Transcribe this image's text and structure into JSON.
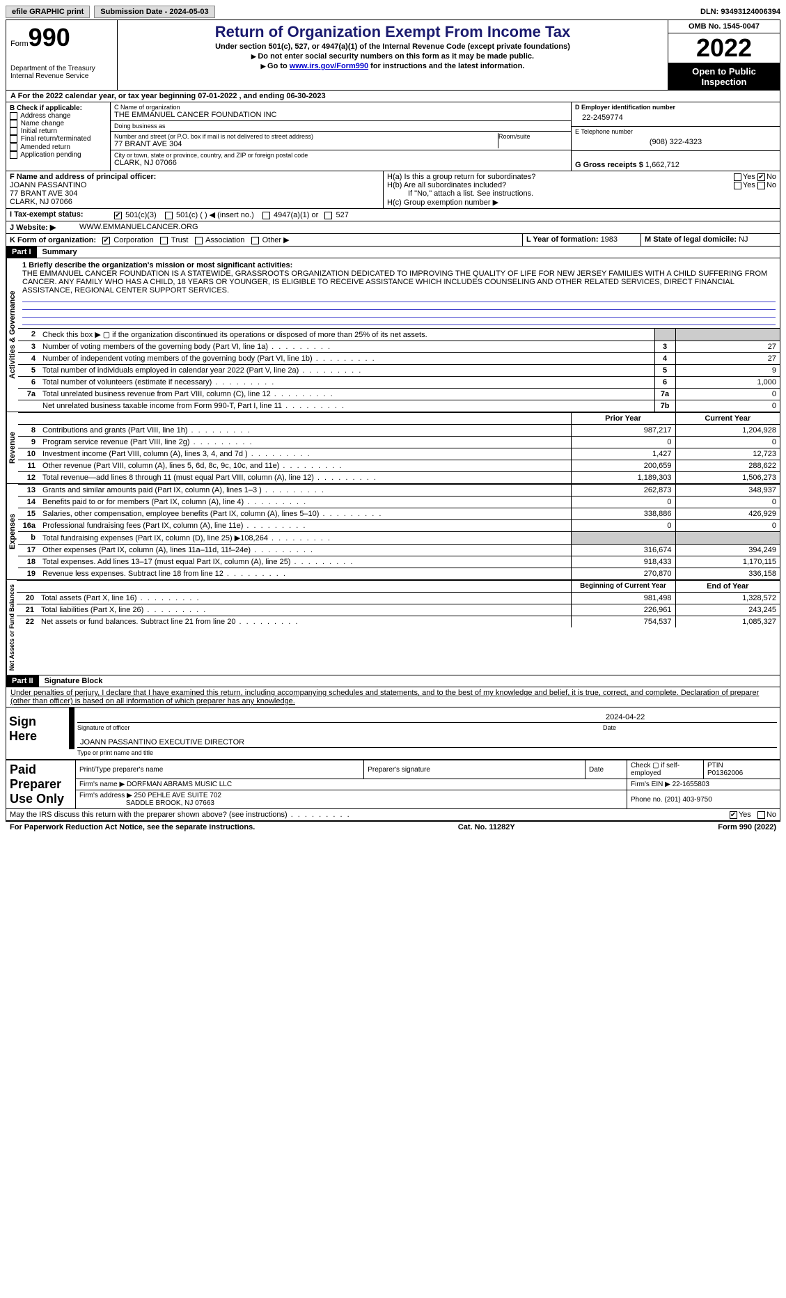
{
  "toolbar": {
    "efile": "efile GRAPHIC print",
    "submission_label": "Submission Date - ",
    "submission_date": "2024-05-03",
    "dln_label": "DLN: ",
    "dln": "93493124006394"
  },
  "header": {
    "form_word": "Form",
    "form_num": "990",
    "dept": "Department of the Treasury\nInternal Revenue Service",
    "title": "Return of Organization Exempt From Income Tax",
    "sub1": "Under section 501(c), 527, or 4947(a)(1) of the Internal Revenue Code (except private foundations)",
    "sub2": "Do not enter social security numbers on this form as it may be made public.",
    "sub3_pre": "Go to ",
    "sub3_link": "www.irs.gov/Form990",
    "sub3_post": " for instructions and the latest information.",
    "omb": "OMB No. 1545-0047",
    "year": "2022",
    "open": "Open to Public Inspection"
  },
  "sectionA": "For the 2022 calendar year, or tax year beginning 07-01-2022   , and ending 06-30-2023",
  "boxB": {
    "title": "B Check if applicable:",
    "items": [
      "Address change",
      "Name change",
      "Initial return",
      "Final return/terminated",
      "Amended return",
      "Application pending"
    ]
  },
  "boxC": {
    "name_lbl": "C Name of organization",
    "name": "THE EMMANUEL CANCER FOUNDATION INC",
    "dba_lbl": "Doing business as",
    "dba": "",
    "street_lbl": "Number and street (or P.O. box if mail is not delivered to street address)",
    "street": "77 BRANT AVE 304",
    "room_lbl": "Room/suite",
    "city_lbl": "City or town, state or province, country, and ZIP or foreign postal code",
    "city": "CLARK, NJ  07066"
  },
  "boxD": {
    "lbl": "D Employer identification number",
    "val": "22-2459774"
  },
  "boxE": {
    "lbl": "E Telephone number",
    "val": "(908) 322-4323"
  },
  "boxG": {
    "lbl": "G Gross receipts $",
    "val": "1,662,712"
  },
  "boxF": {
    "lbl": "F  Name and address of principal officer:",
    "name": "JOANN PASSANTINO",
    "addr1": "77 BRANT AVE 304",
    "addr2": "CLARK, NJ  07066"
  },
  "boxH": {
    "a": "H(a)  Is this a group return for subordinates?",
    "b": "H(b)  Are all subordinates included?",
    "b_note": "If \"No,\" attach a list. See instructions.",
    "c": "H(c)  Group exemption number ▶",
    "yes": "Yes",
    "no": "No"
  },
  "rowI": {
    "lbl": "I  Tax-exempt status:",
    "o1": "501(c)(3)",
    "o2": "501(c) (  ) ◀ (insert no.)",
    "o3": "4947(a)(1) or",
    "o4": "527"
  },
  "rowJ": {
    "lbl": "J  Website: ▶",
    "val": "WWW.EMMANUELCANCER.ORG"
  },
  "rowK": {
    "lbl": "K Form of organization:",
    "o1": "Corporation",
    "o2": "Trust",
    "o3": "Association",
    "o4": "Other ▶"
  },
  "rowL": {
    "lbl": "L Year of formation: ",
    "val": "1983"
  },
  "rowM": {
    "lbl": "M State of legal domicile: ",
    "val": "NJ"
  },
  "part1": {
    "header": "Part I",
    "title": "Summary",
    "sidebar_ag": "Activities & Governance",
    "sidebar_rev": "Revenue",
    "sidebar_exp": "Expenses",
    "sidebar_na": "Net Assets or Fund Balances",
    "l1_lbl": "1  Briefly describe the organization's mission or most significant activities:",
    "l1_val": "THE EMMANUEL CANCER FOUNDATION IS A STATEWIDE, GRASSROOTS ORGANIZATION DEDICATED TO IMPROVING THE QUALITY OF LIFE FOR NEW JERSEY FAMILIES WITH A CHILD SUFFERING FROM CANCER. ANY FAMILY WHO HAS A CHILD, 18 YEARS OR YOUNGER, IS ELIGIBLE TO RECEIVE ASSISTANCE WHICH INCLUDES COUNSELING AND OTHER RELATED SERVICES, DIRECT FINANCIAL ASSISTANCE, REGIONAL CENTER SUPPORT SERVICES.",
    "l2": "Check this box ▶ ▢ if the organization discontinued its operations or disposed of more than 25% of its net assets.",
    "rows_ag": [
      {
        "n": "3",
        "t": "Number of voting members of the governing body (Part VI, line 1a)",
        "b": "3",
        "v": "27"
      },
      {
        "n": "4",
        "t": "Number of independent voting members of the governing body (Part VI, line 1b)",
        "b": "4",
        "v": "27"
      },
      {
        "n": "5",
        "t": "Total number of individuals employed in calendar year 2022 (Part V, line 2a)",
        "b": "5",
        "v": "9"
      },
      {
        "n": "6",
        "t": "Total number of volunteers (estimate if necessary)",
        "b": "6",
        "v": "1,000"
      },
      {
        "n": "7a",
        "t": "Total unrelated business revenue from Part VIII, column (C), line 12",
        "b": "7a",
        "v": "0"
      },
      {
        "n": "",
        "t": "Net unrelated business taxable income from Form 990-T, Part I, line 11",
        "b": "7b",
        "v": "0"
      }
    ],
    "col_prior": "Prior Year",
    "col_current": "Current Year",
    "rows_rev": [
      {
        "n": "8",
        "t": "Contributions and grants (Part VIII, line 1h)",
        "p": "987,217",
        "c": "1,204,928"
      },
      {
        "n": "9",
        "t": "Program service revenue (Part VIII, line 2g)",
        "p": "0",
        "c": "0"
      },
      {
        "n": "10",
        "t": "Investment income (Part VIII, column (A), lines 3, 4, and 7d )",
        "p": "1,427",
        "c": "12,723"
      },
      {
        "n": "11",
        "t": "Other revenue (Part VIII, column (A), lines 5, 6d, 8c, 9c, 10c, and 11e)",
        "p": "200,659",
        "c": "288,622"
      },
      {
        "n": "12",
        "t": "Total revenue—add lines 8 through 11 (must equal Part VIII, column (A), line 12)",
        "p": "1,189,303",
        "c": "1,506,273"
      }
    ],
    "rows_exp": [
      {
        "n": "13",
        "t": "Grants and similar amounts paid (Part IX, column (A), lines 1–3 )",
        "p": "262,873",
        "c": "348,937"
      },
      {
        "n": "14",
        "t": "Benefits paid to or for members (Part IX, column (A), line 4)",
        "p": "0",
        "c": "0"
      },
      {
        "n": "15",
        "t": "Salaries, other compensation, employee benefits (Part IX, column (A), lines 5–10)",
        "p": "338,886",
        "c": "426,929"
      },
      {
        "n": "16a",
        "t": "Professional fundraising fees (Part IX, column (A), line 11e)",
        "p": "0",
        "c": "0"
      },
      {
        "n": "b",
        "t": "Total fundraising expenses (Part IX, column (D), line 25) ▶108,264",
        "p": "",
        "c": "",
        "grey": true
      },
      {
        "n": "17",
        "t": "Other expenses (Part IX, column (A), lines 11a–11d, 11f–24e)",
        "p": "316,674",
        "c": "394,249"
      },
      {
        "n": "18",
        "t": "Total expenses. Add lines 13–17 (must equal Part IX, column (A), line 25)",
        "p": "918,433",
        "c": "1,170,115"
      },
      {
        "n": "19",
        "t": "Revenue less expenses. Subtract line 18 from line 12",
        "p": "270,870",
        "c": "336,158"
      }
    ],
    "col_begin": "Beginning of Current Year",
    "col_end": "End of Year",
    "rows_na": [
      {
        "n": "20",
        "t": "Total assets (Part X, line 16)",
        "p": "981,498",
        "c": "1,328,572"
      },
      {
        "n": "21",
        "t": "Total liabilities (Part X, line 26)",
        "p": "226,961",
        "c": "243,245"
      },
      {
        "n": "22",
        "t": "Net assets or fund balances. Subtract line 21 from line 20",
        "p": "754,537",
        "c": "1,085,327"
      }
    ]
  },
  "part2": {
    "header": "Part II",
    "title": "Signature Block",
    "penalty": "Under penalties of perjury, I declare that I have examined this return, including accompanying schedules and statements, and to the best of my knowledge and belief, it is true, correct, and complete. Declaration of preparer (other than officer) is based on all information of which preparer has any knowledge.",
    "sign_here": "Sign Here",
    "sig_officer": "Signature of officer",
    "sig_date": "2024-04-22",
    "date_lbl": "Date",
    "officer_name": "JOANN PASSANTINO  EXECUTIVE DIRECTOR",
    "typed_lbl": "Type or print name and title",
    "paid_prep": "Paid Preparer Use Only",
    "prep_h1": "Print/Type preparer's name",
    "prep_h2": "Preparer's signature",
    "prep_h3": "Date",
    "prep_h4": "Check ▢ if self-employed",
    "prep_h5": "PTIN",
    "ptin": "P01362006",
    "firm_name_lbl": "Firm's name    ▶",
    "firm_name": "DORFMAN ABRAMS MUSIC LLC",
    "firm_ein_lbl": "Firm's EIN ▶",
    "firm_ein": "22-1655803",
    "firm_addr_lbl": "Firm's address ▶",
    "firm_addr1": "250 PEHLE AVE SUITE 702",
    "firm_addr2": "SADDLE BROOK, NJ  07663",
    "phone_lbl": "Phone no. ",
    "phone": "(201) 403-9750",
    "discuss": "May the IRS discuss this return with the preparer shown above? (see instructions)",
    "yes": "Yes",
    "no": "No"
  },
  "footer": {
    "left": "For Paperwork Reduction Act Notice, see the separate instructions.",
    "center": "Cat. No. 11282Y",
    "right": "Form 990 (2022)"
  }
}
